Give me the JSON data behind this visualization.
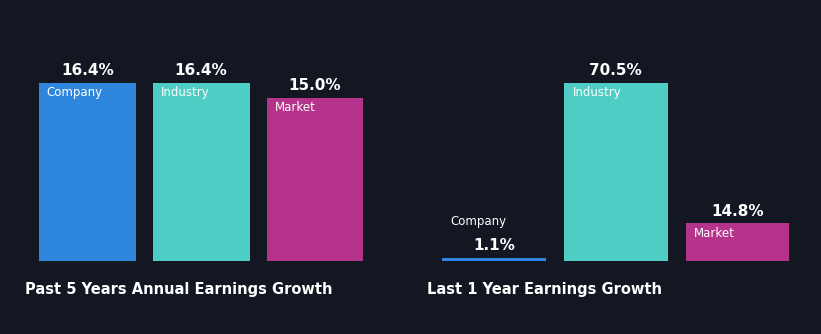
{
  "background_color": "#131722",
  "left_chart": {
    "title": "Past 5 Years Annual Earnings Growth",
    "bars": [
      {
        "label": "Company",
        "value": 16.4,
        "color": "#2e86de"
      },
      {
        "label": "Industry",
        "value": 16.4,
        "color": "#4ecdc4"
      },
      {
        "label": "Market",
        "value": 15.0,
        "color": "#b5338a"
      }
    ]
  },
  "right_chart": {
    "title": "Last 1 Year Earnings Growth",
    "bars": [
      {
        "label": "Company",
        "value": 1.1,
        "color": "#2e86de"
      },
      {
        "label": "Industry",
        "value": 70.5,
        "color": "#4ecdc4"
      },
      {
        "label": "Market",
        "value": 14.8,
        "color": "#b5338a"
      }
    ]
  },
  "text_color": "#ffffff",
  "label_fontsize": 8.5,
  "value_fontsize": 11,
  "title_fontsize": 10.5
}
